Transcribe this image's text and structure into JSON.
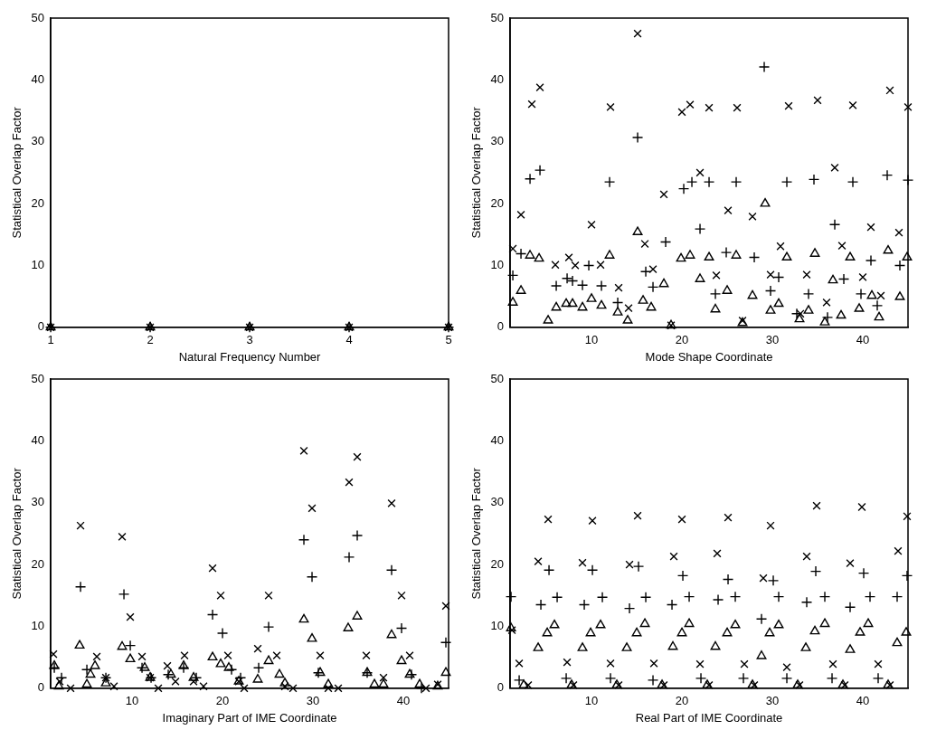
{
  "chart_data": [
    {
      "type": "scatter",
      "xlabel": "Natural Frequency Number",
      "ylabel": "Statistical Overlap Factor",
      "xlim": [
        1,
        5
      ],
      "xticks": [
        1,
        2,
        3,
        4,
        5
      ],
      "ylim": [
        0,
        50
      ],
      "yticks": [
        0,
        10,
        20,
        30,
        40,
        50
      ],
      "series": [
        {
          "color": "#000000",
          "marker": "cross",
          "x": [
            1,
            2,
            3,
            4,
            5
          ],
          "values": [
            0,
            0,
            0,
            0,
            0
          ]
        },
        {
          "color": "#000000",
          "marker": "plus",
          "x": [
            1,
            2,
            3,
            4,
            5
          ],
          "values": [
            0,
            0,
            0,
            0,
            0
          ]
        },
        {
          "color": "#000000",
          "marker": "triangle",
          "x": [
            1,
            2,
            3,
            4,
            5
          ],
          "values": [
            0,
            0,
            0,
            0,
            0
          ]
        }
      ]
    },
    {
      "type": "scatter",
      "xlabel": "Mode Shape Coordinate",
      "ylabel": "Statistical Overlap Factor",
      "xlim": [
        1,
        45
      ],
      "xticks": [
        10,
        20,
        30,
        40
      ],
      "ylim": [
        0,
        50
      ],
      "yticks": [
        0,
        10,
        20,
        30,
        40,
        50
      ],
      "series": [
        {
          "color": "#000000",
          "marker": "cross",
          "x": [
            1.3,
            2.2,
            3.4,
            4.3,
            6,
            7.5,
            8.2,
            10,
            11,
            12.1,
            13,
            14.1,
            15.1,
            15.9,
            16.8,
            18,
            18.8,
            20,
            20.9,
            23,
            26.1,
            31.8,
            35,
            38.9,
            43,
            45,
            22,
            25.1,
            27.8,
            36.9,
            40.9,
            44,
            23.8,
            30.9,
            29.8,
            33.8,
            37.7,
            40,
            36,
            42,
            33.1,
            26.7
          ],
          "values": [
            12.7,
            18.2,
            36.1,
            38.8,
            10.1,
            11.3,
            10,
            16.6,
            10.1,
            35.6,
            6.4,
            3.1,
            47.5,
            13.5,
            9.4,
            21.5,
            0.3,
            34.8,
            36,
            35.5,
            35.5,
            35.8,
            36.7,
            35.9,
            38.3,
            35.6,
            25,
            18.9,
            17.9,
            25.8,
            16.2,
            15.3,
            8.4,
            13.1,
            8.5,
            8.5,
            13.2,
            8.1,
            4,
            5.1,
            2.2,
            1.1
          ]
        },
        {
          "color": "#000000",
          "marker": "plus",
          "x": [
            1.3,
            2.2,
            3.2,
            4.3,
            6.1,
            7.3,
            7.9,
            9,
            9.7,
            11.1,
            12.9,
            12,
            15.1,
            16,
            16.8,
            18.2,
            20.2,
            21.1,
            23,
            26,
            31.6,
            34.6,
            38.9,
            42.7,
            45,
            29.1,
            22,
            36.9,
            24.9,
            28,
            40.9,
            44.1,
            23.7,
            29.8,
            30.7,
            34,
            37.9,
            39.8,
            41.6,
            36.1,
            32.7
          ],
          "values": [
            8.4,
            11.9,
            24,
            25.4,
            6.7,
            7.9,
            7.5,
            6.8,
            10,
            6.7,
            4,
            23.5,
            30.7,
            9,
            6.5,
            13.8,
            22.4,
            23.5,
            23.5,
            23.5,
            23.5,
            23.9,
            23.5,
            24.6,
            23.8,
            42.1,
            15.9,
            16.6,
            12.1,
            11.3,
            10.8,
            10,
            5.4,
            5.9,
            8.1,
            5.4,
            7.8,
            5.4,
            3.5,
            1.6,
            2.2
          ]
        },
        {
          "color": "#000000",
          "marker": "triangle",
          "x": [
            1.3,
            2.2,
            3.2,
            4.2,
            5.2,
            6.1,
            7.2,
            7.9,
            9,
            10,
            11.1,
            12,
            12.9,
            14,
            15.1,
            15.7,
            16.6,
            18,
            18.8,
            19.9,
            20.9,
            23,
            26,
            29.2,
            31.6,
            34.7,
            38.6,
            42.8,
            44.9,
            22,
            25,
            27.8,
            36.7,
            41,
            44.1,
            23.7,
            29.8,
            30.7,
            34,
            37.6,
            39.6,
            41.8,
            33,
            35.8,
            26.7
          ],
          "values": [
            4,
            5.9,
            11.6,
            11.1,
            1.1,
            3.2,
            3.8,
            3.8,
            3.2,
            4.6,
            3.5,
            11.6,
            2.4,
            1.1,
            15.4,
            4.3,
            3.2,
            7,
            0.3,
            11.1,
            11.6,
            11.3,
            11.6,
            20,
            11.3,
            11.9,
            11.3,
            12.4,
            11.3,
            7.8,
            5.9,
            5.1,
            7.6,
            5.1,
            4.9,
            2.9,
            2.7,
            3.8,
            2.7,
            1.9,
            3,
            1.6,
            1.3,
            0.8,
            0.7
          ]
        }
      ]
    },
    {
      "type": "scatter",
      "xlabel": "Imaginary Part of IME Coordinate",
      "ylabel": "Statistical Overlap Factor",
      "xlim": [
        1,
        45
      ],
      "xticks": [
        10,
        20,
        30,
        40
      ],
      "ylim": [
        0,
        50
      ],
      "yticks": [
        0,
        10,
        20,
        30,
        40,
        50
      ],
      "series": [
        {
          "color": "#000000",
          "marker": "cross",
          "x": [
            1.3,
            4.3,
            6.1,
            8.9,
            9.8,
            11.1,
            13.9,
            15.8,
            18.9,
            19.8,
            20.6,
            2,
            3.2,
            7.1,
            8,
            12,
            12.9,
            14.8,
            16.8,
            17.9,
            21.8,
            25.1,
            29,
            29.9,
            34,
            34.9,
            38.7,
            39.8,
            23.9,
            26,
            30.8,
            35.9,
            40.7,
            44.7,
            22.4,
            26.9,
            27.8,
            31.7,
            32.8,
            37.8,
            42.5,
            43.8
          ],
          "values": [
            5.5,
            26.3,
            5.1,
            24.5,
            11.5,
            5.1,
            3.6,
            5.3,
            19.4,
            15,
            5.3,
            1.1,
            0,
            1.7,
            0.3,
            1.7,
            0,
            1.1,
            1.1,
            0.3,
            1.1,
            15,
            38.4,
            29.1,
            33.3,
            37.4,
            29.9,
            15,
            6.4,
            5.3,
            5.3,
            5.3,
            5.3,
            13.3,
            0,
            0.3,
            0,
            0,
            0,
            1.7,
            0,
            0.6
          ]
        },
        {
          "color": "#000000",
          "marker": "plus",
          "x": [
            1.4,
            2.2,
            4.3,
            5,
            7.1,
            9.1,
            9.8,
            11.1,
            12.1,
            14,
            15.7,
            17.1,
            18.9,
            20,
            21,
            22,
            24,
            25.1,
            29,
            29.9,
            30.6,
            31.9,
            34,
            34.9,
            36,
            38.7,
            39.8,
            40.9,
            42,
            44.7
          ],
          "values": [
            3.3,
            1.7,
            16.4,
            3,
            1.7,
            15.2,
            6.9,
            3.3,
            1.7,
            2.2,
            3.3,
            1.7,
            11.9,
            8.9,
            3,
            1.7,
            3.3,
            9.9,
            24,
            18,
            2.5,
            null,
            21.2,
            24.7,
            2.5,
            19.1,
            9.7,
            2.2,
            0,
            7.4
          ]
        },
        {
          "color": "#000000",
          "marker": "triangle",
          "x": [
            1.4,
            1.9,
            4.2,
            5,
            5.4,
            5.9,
            7.1,
            8.9,
            9.8,
            11.4,
            12,
            14.3,
            15.7,
            16.8,
            18.9,
            19.8,
            20.7,
            21.8,
            23.9,
            25.1,
            26.3,
            26.9,
            29,
            29.9,
            30.8,
            31.7,
            33.9,
            34.9,
            36,
            36.8,
            37.8,
            38.7,
            39.8,
            40.7,
            41.8,
            43.8,
            44.7
          ],
          "values": [
            3.6,
            0.3,
            6.9,
            0.6,
            2.2,
            3.6,
            0.8,
            6.7,
            4.7,
            3.3,
            1.7,
            2.2,
            3.6,
            1.7,
            5,
            3.9,
            3.3,
            1.1,
            1.4,
            4.4,
            2.2,
            0.8,
            11.1,
            8,
            2.5,
            0.6,
            9.7,
            11.6,
            2.5,
            0.6,
            0.6,
            8.6,
            4.4,
            2.2,
            0.6,
            0.3,
            2.5
          ]
        }
      ]
    },
    {
      "type": "scatter",
      "xlabel": "Real Part of IME Coordinate",
      "ylabel": "Statistical Overlap Factor",
      "xlim": [
        1,
        45
      ],
      "xticks": [
        10,
        20,
        30,
        40
      ],
      "ylim": [
        0,
        50
      ],
      "yticks": [
        0,
        10,
        20,
        30,
        40,
        50
      ],
      "series": [
        {
          "color": "#000000",
          "marker": "cross",
          "x": [
            1.2,
            2,
            4.1,
            5.2,
            7.3,
            9,
            10.1,
            12.1,
            14.2,
            15.1,
            16.9,
            19.1,
            20,
            22,
            23.9,
            25.1,
            26.9,
            29,
            29.8,
            31.6,
            33.8,
            34.9,
            36.7,
            38.6,
            39.9,
            41.7,
            43.9,
            44.9,
            3,
            8,
            13,
            18,
            23,
            28,
            33,
            38,
            43
          ],
          "values": [
            9.4,
            4,
            20.5,
            27.3,
            4.2,
            20.3,
            27.1,
            4,
            20,
            27.9,
            4,
            21.3,
            27.3,
            3.9,
            21.8,
            27.6,
            3.9,
            17.8,
            26.3,
            3.4,
            21.3,
            29.5,
            3.9,
            20.2,
            29.3,
            3.9,
            22.2,
            27.8,
            0.5,
            0.5,
            0.5,
            0.5,
            0.5,
            0.5,
            0.5,
            0.5,
            0.5
          ]
        },
        {
          "color": "#000000",
          "marker": "plus",
          "x": [
            1.1,
            4.4,
            5.3,
            6.2,
            9.2,
            10.1,
            11.2,
            14.2,
            15.2,
            16,
            18.9,
            20.1,
            20.8,
            24,
            25.1,
            25.9,
            28.8,
            30.1,
            30.7,
            33.8,
            34.8,
            35.8,
            38.6,
            40.1,
            40.8,
            43.8,
            44.9,
            2,
            7.2,
            12.1,
            16.8,
            22.1,
            26.8,
            31.6,
            36.6,
            41.7
          ],
          "values": [
            14.8,
            13.5,
            19.1,
            14.7,
            13.5,
            19.1,
            14.7,
            12.9,
            19.7,
            14.7,
            13.5,
            18.2,
            14.8,
            14.3,
            17.6,
            14.8,
            11.2,
            17.4,
            14.8,
            13.9,
            18.9,
            14.8,
            13.1,
            18.6,
            14.8,
            14.8,
            18.2,
            1.3,
            1.6,
            1.6,
            1.3,
            1.6,
            1.6,
            1.6,
            1.6,
            1.6
          ]
        },
        {
          "color": "#000000",
          "marker": "triangle",
          "x": [
            1.1,
            4.1,
            5.1,
            5.9,
            9,
            9.9,
            11,
            13.9,
            15,
            15.9,
            19,
            20,
            20.8,
            23.7,
            25,
            25.9,
            28.8,
            29.7,
            30.7,
            33.7,
            34.7,
            35.8,
            38.6,
            39.7,
            40.6,
            43.8,
            44.8,
            2.5,
            7.8,
            12.8,
            17.8,
            22.8,
            27.8,
            32.8,
            37.8,
            42.8
          ],
          "values": [
            9.7,
            6.5,
            8.9,
            10.2,
            6.5,
            8.9,
            10.2,
            6.5,
            8.9,
            10.4,
            6.7,
            8.9,
            10.4,
            6.7,
            8.9,
            10.2,
            5.2,
            8.9,
            10.2,
            6.5,
            9.2,
            10.4,
            6.2,
            9,
            10.4,
            7.3,
            9,
            0.5,
            0.5,
            0.5,
            0.5,
            0.5,
            0.5,
            0.5,
            0.5,
            0.5
          ]
        }
      ]
    }
  ]
}
